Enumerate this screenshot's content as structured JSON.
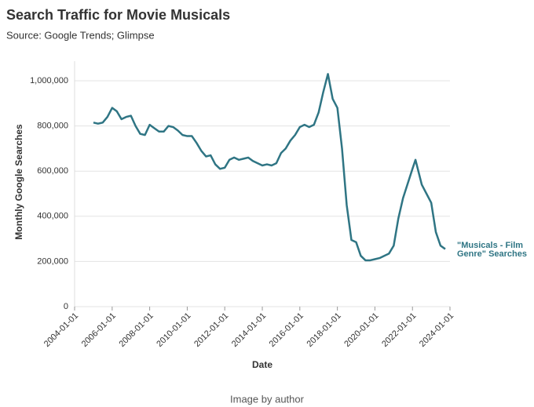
{
  "chart_data": {
    "type": "line",
    "title": "Search Traffic for Movie Musicals",
    "subtitle": "Source: Google Trends; Glimpse",
    "x_label": "Date",
    "y_label": "Monthly Google Searches",
    "xlim": [
      "2004-01-01",
      "2024-01-01"
    ],
    "xticks": [
      "2004-01-01",
      "2006-01-01",
      "2008-01-01",
      "2010-01-01",
      "2012-01-01",
      "2014-01-01",
      "2016-01-01",
      "2018-01-01",
      "2020-01-01",
      "2022-01-01",
      "2024-01-01"
    ],
    "ylim": [
      0,
      1000000
    ],
    "yticks": [
      0,
      {
        "value": 200000,
        "label": "200,000"
      },
      {
        "value": 400000,
        "label": "400,000"
      },
      {
        "value": 600000,
        "label": "600,000"
      },
      {
        "value": 800000,
        "label": "800,000"
      },
      {
        "value": 1000000,
        "label": "1,000,000"
      }
    ],
    "grid": true,
    "x": [
      "2005-01-01",
      "2005-04-01",
      "2005-07-01",
      "2005-10-01",
      "2006-01-01",
      "2006-04-01",
      "2006-07-01",
      "2006-10-01",
      "2007-01-01",
      "2007-04-01",
      "2007-07-01",
      "2007-10-01",
      "2008-01-01",
      "2008-04-01",
      "2008-07-01",
      "2008-10-01",
      "2009-01-01",
      "2009-04-01",
      "2009-07-01",
      "2009-10-01",
      "2010-01-01",
      "2010-04-01",
      "2010-07-01",
      "2010-10-01",
      "2011-01-01",
      "2011-04-01",
      "2011-07-01",
      "2011-10-01",
      "2012-01-01",
      "2012-04-01",
      "2012-07-01",
      "2012-10-01",
      "2013-01-01",
      "2013-04-01",
      "2013-07-01",
      "2013-10-01",
      "2014-01-01",
      "2014-04-01",
      "2014-07-01",
      "2014-10-01",
      "2015-01-01",
      "2015-04-01",
      "2015-07-01",
      "2015-10-01",
      "2016-01-01",
      "2016-04-01",
      "2016-07-01",
      "2016-10-01",
      "2017-01-01",
      "2017-04-01",
      "2017-07-01",
      "2017-10-01",
      "2018-01-01",
      "2018-04-01",
      "2018-07-01",
      "2018-10-01",
      "2019-01-01",
      "2019-04-01",
      "2019-07-01",
      "2019-10-01",
      "2020-01-01",
      "2020-04-01",
      "2020-07-01",
      "2020-10-01",
      "2021-01-01",
      "2021-04-01",
      "2021-07-01",
      "2021-10-01",
      "2022-01-01",
      "2022-03-01",
      "2022-07-01",
      "2022-10-01",
      "2023-01-01",
      "2023-04-01",
      "2023-07-01",
      "2023-10-01"
    ],
    "series": [
      {
        "name": "\"Musicals - Film Genre\" Searches",
        "color": "#2f7584",
        "values": [
          815000,
          810000,
          815000,
          840000,
          880000,
          865000,
          830000,
          840000,
          845000,
          800000,
          765000,
          760000,
          805000,
          790000,
          775000,
          775000,
          800000,
          795000,
          780000,
          760000,
          755000,
          755000,
          725000,
          690000,
          665000,
          670000,
          630000,
          610000,
          615000,
          650000,
          660000,
          650000,
          655000,
          660000,
          645000,
          635000,
          625000,
          630000,
          625000,
          635000,
          680000,
          700000,
          735000,
          760000,
          795000,
          805000,
          795000,
          805000,
          860000,
          950000,
          1030000,
          920000,
          880000,
          700000,
          450000,
          295000,
          285000,
          225000,
          205000,
          205000,
          210000,
          215000,
          225000,
          235000,
          270000,
          390000,
          480000,
          545000,
          610000,
          650000,
          540000,
          500000,
          460000,
          330000,
          270000,
          255000
        ]
      }
    ]
  },
  "caption": "Image by author"
}
